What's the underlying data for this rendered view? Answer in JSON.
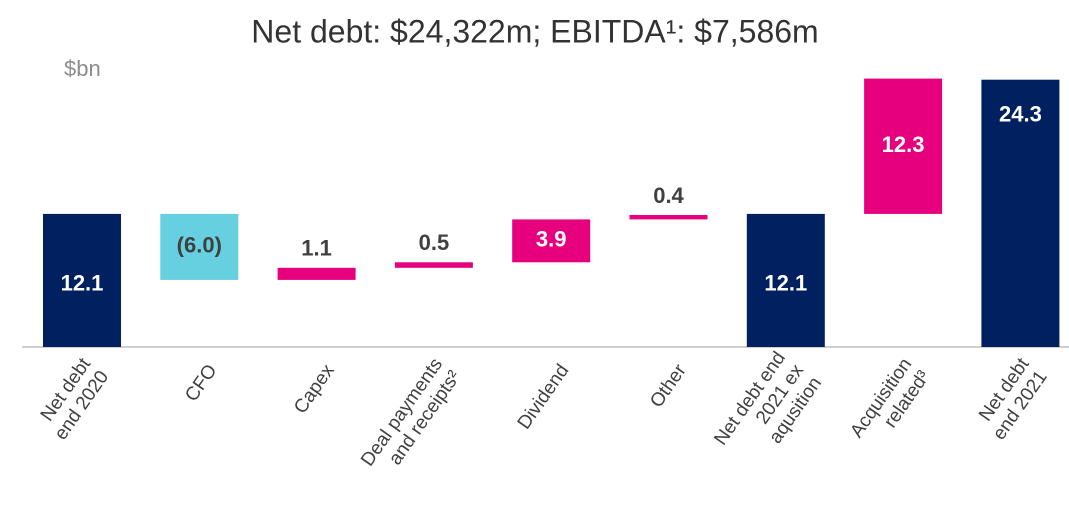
{
  "chart_data": {
    "type": "waterfall",
    "title": "Net debt: $24,322m; EBITDA¹: $7,586m",
    "y_label": "$bn",
    "categories": [
      "Net debt\nend 2020",
      "CFO",
      "Capex",
      "Deal payments\nand receipts²",
      "Dividend",
      "Other",
      "Net debt end\n2021 ex\naqusition",
      "Acquisition\nrelated³",
      "Net debt\nend 2021"
    ],
    "values": [
      12.1,
      -6.0,
      1.1,
      0.5,
      3.9,
      0.4,
      12.1,
      12.3,
      24.3
    ],
    "value_labels": [
      "12.1",
      "(6.0)",
      "1.1",
      "0.5",
      "3.9",
      "0.4",
      "12.1",
      "12.3",
      "24.3"
    ],
    "kinds": [
      "total",
      "delta",
      "delta",
      "delta",
      "delta",
      "delta",
      "total",
      "delta",
      "total"
    ],
    "colors": [
      "#002060",
      "#66cfe0",
      "#e6007e",
      "#e6007e",
      "#e6007e",
      "#e6007e",
      "#002060",
      "#e6007e",
      "#002060"
    ],
    "ylim": [
      0,
      25.5
    ]
  }
}
